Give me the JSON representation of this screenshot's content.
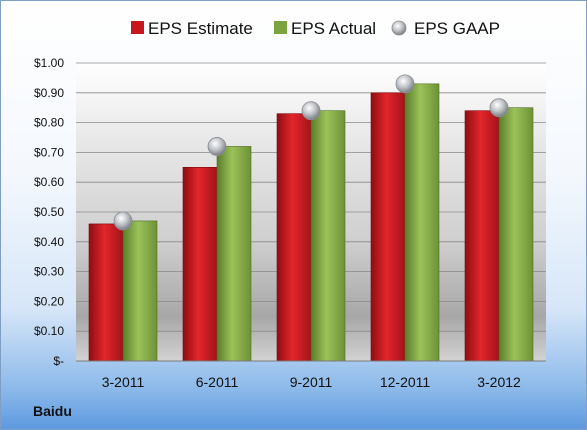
{
  "company": "Baidu",
  "colors": {
    "estimate": "#c8161d",
    "actual": "#7ba33e",
    "gaap": "#b8bcc2"
  },
  "chart_data": {
    "type": "bar",
    "categories": [
      "3-2011",
      "6-2011",
      "9-2011",
      "12-2011",
      "3-2012"
    ],
    "series": [
      {
        "name": "EPS Estimate",
        "kind": "bar",
        "values": [
          0.46,
          0.65,
          0.83,
          0.9,
          0.84
        ]
      },
      {
        "name": "EPS Actual",
        "kind": "bar",
        "values": [
          0.47,
          0.72,
          0.84,
          0.93,
          0.85
        ]
      },
      {
        "name": "EPS GAAP",
        "kind": "marker",
        "values": [
          0.47,
          0.72,
          0.84,
          0.93,
          0.85
        ]
      }
    ],
    "y_ticks": [
      "$-",
      "$0.10",
      "$0.20",
      "$0.30",
      "$0.40",
      "$0.50",
      "$0.60",
      "$0.70",
      "$0.80",
      "$0.90",
      "$1.00"
    ],
    "ylim": [
      0,
      1.0
    ],
    "grid": true,
    "legend_position": "top"
  }
}
